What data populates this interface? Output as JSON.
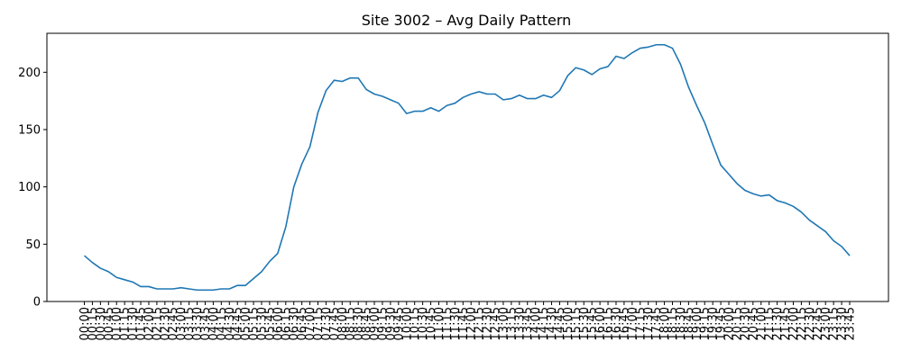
{
  "chart_data": {
    "type": "line",
    "title": "Site 3002 – Avg Daily Pattern",
    "xlabel": "",
    "ylabel": "",
    "ylim": [
      0,
      234
    ],
    "y_ticks": [
      0,
      50,
      100,
      150,
      200
    ],
    "grid": false,
    "legend": "none",
    "line_color": "#1f77b4",
    "x": [
      "00:00",
      "00:15",
      "00:30",
      "00:45",
      "01:00",
      "01:15",
      "01:30",
      "01:45",
      "02:00",
      "02:15",
      "02:30",
      "02:45",
      "03:00",
      "03:15",
      "03:30",
      "03:45",
      "04:00",
      "04:15",
      "04:30",
      "04:45",
      "05:00",
      "05:15",
      "05:30",
      "05:45",
      "06:00",
      "06:15",
      "06:30",
      "06:45",
      "07:00",
      "07:15",
      "07:30",
      "07:45",
      "08:00",
      "08:15",
      "08:30",
      "08:45",
      "09:00",
      "09:15",
      "09:30",
      "09:45",
      "10:00",
      "10:15",
      "10:30",
      "10:45",
      "11:00",
      "11:15",
      "11:30",
      "11:45",
      "12:00",
      "12:15",
      "12:30",
      "12:45",
      "13:00",
      "13:15",
      "13:30",
      "13:45",
      "14:00",
      "14:15",
      "14:30",
      "14:45",
      "15:00",
      "15:15",
      "15:30",
      "15:45",
      "16:00",
      "16:15",
      "16:30",
      "16:45",
      "17:00",
      "17:15",
      "17:30",
      "17:45",
      "18:00",
      "18:15",
      "18:30",
      "18:45",
      "19:00",
      "19:15",
      "19:30",
      "19:45",
      "20:00",
      "20:15",
      "20:30",
      "20:45",
      "21:00",
      "21:15",
      "21:30",
      "21:45",
      "22:00",
      "22:15",
      "22:30",
      "22:45",
      "23:00",
      "23:15",
      "23:30",
      "23:45"
    ],
    "series": [
      {
        "values": [
          40,
          34,
          29,
          26,
          21,
          19,
          17,
          13,
          13,
          11,
          11,
          11,
          12,
          11,
          10,
          10,
          10,
          11,
          11,
          14,
          14,
          20,
          26,
          35,
          42,
          65,
          100,
          120,
          135,
          165,
          184,
          193,
          192,
          195,
          195,
          185,
          181,
          179,
          176,
          173,
          164,
          166,
          166,
          169,
          166,
          171,
          173,
          178,
          181,
          183,
          181,
          181,
          176,
          177,
          180,
          177,
          177,
          180,
          178,
          184,
          197,
          204,
          202,
          198,
          203,
          205,
          214,
          212,
          217,
          221,
          222,
          224,
          224,
          221,
          207,
          187,
          171,
          156,
          137,
          119,
          111,
          103,
          97,
          94,
          92,
          93,
          88,
          86,
          83,
          78,
          71,
          66,
          61,
          53,
          48,
          40
        ]
      }
    ]
  }
}
